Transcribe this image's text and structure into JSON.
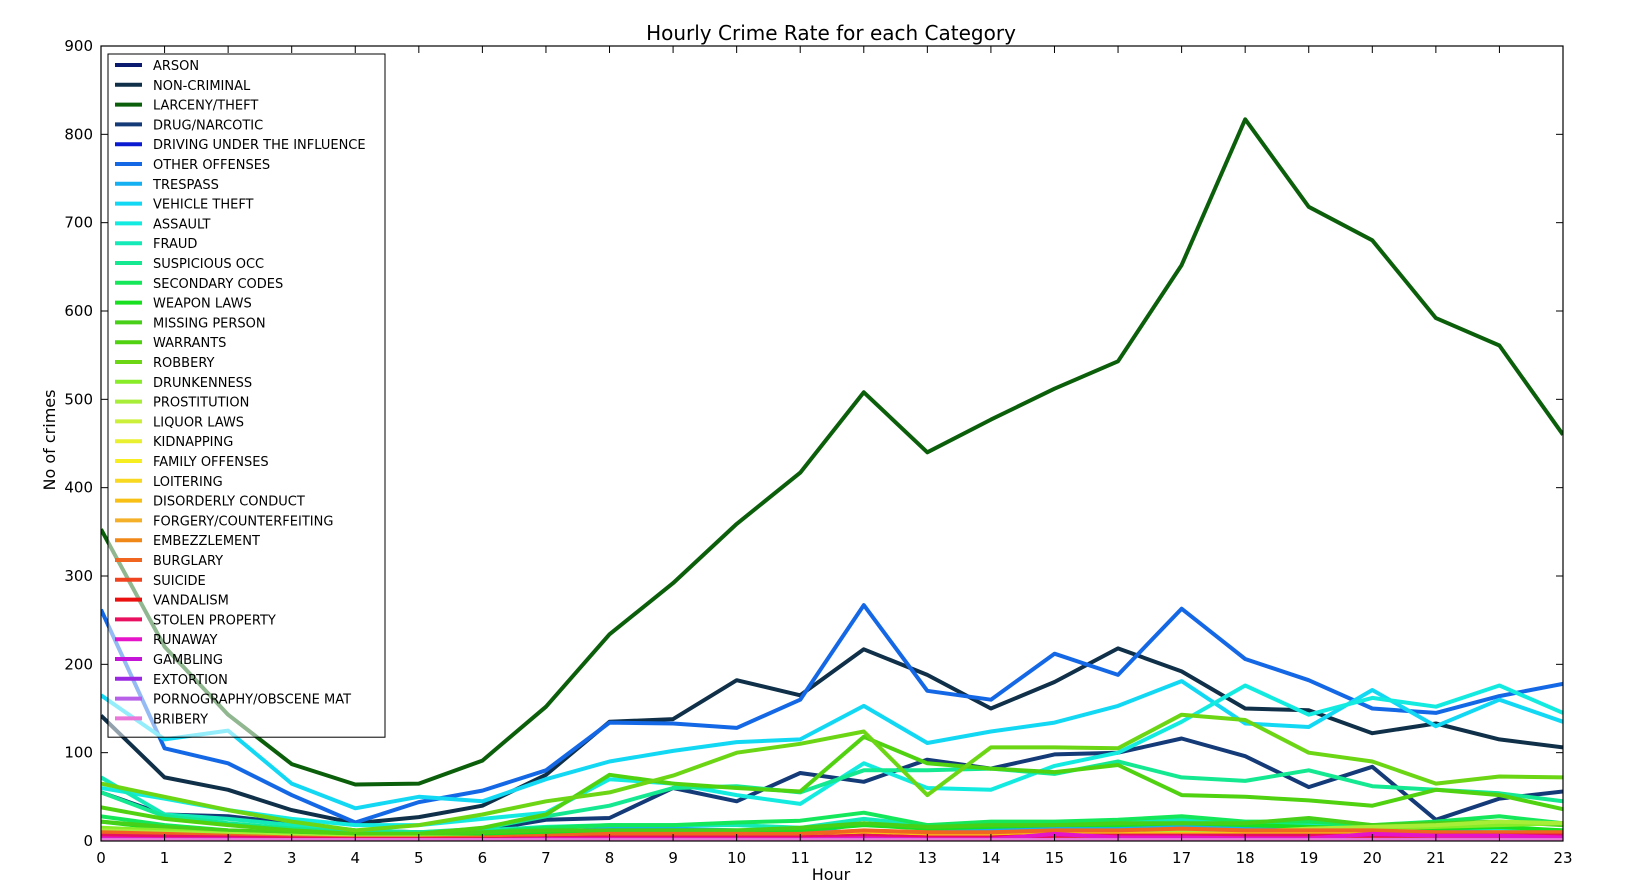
{
  "chart_data": {
    "type": "line",
    "title": "Hourly Crime Rate for each Category",
    "xlabel": "Hour",
    "ylabel": "No of crimes",
    "xlim": [
      0,
      23
    ],
    "ylim": [
      0,
      900
    ],
    "x": [
      0,
      1,
      2,
      3,
      4,
      5,
      6,
      7,
      8,
      9,
      10,
      11,
      12,
      13,
      14,
      15,
      16,
      17,
      18,
      19,
      20,
      21,
      22,
      23
    ],
    "xticks": [
      "0",
      "1",
      "2",
      "3",
      "4",
      "5",
      "6",
      "7",
      "8",
      "9",
      "10",
      "11",
      "12",
      "13",
      "14",
      "15",
      "16",
      "17",
      "18",
      "19",
      "20",
      "21",
      "22",
      "23"
    ],
    "yticks": [
      "0",
      "100",
      "200",
      "300",
      "400",
      "500",
      "600",
      "700",
      "800",
      "900"
    ],
    "grid": false,
    "legend_position": "top-left",
    "series": [
      {
        "name": "ARSON",
        "color": "#0a1a6e",
        "values": [
          1,
          1,
          1,
          1,
          1,
          1,
          1,
          1,
          1,
          1,
          1,
          1,
          1,
          1,
          1,
          1,
          1,
          1,
          1,
          1,
          1,
          1,
          1,
          1
        ]
      },
      {
        "name": "NON-CRIMINAL",
        "color": "#0f3048",
        "values": [
          142,
          72,
          58,
          35,
          20,
          27,
          40,
          75,
          135,
          138,
          182,
          165,
          217,
          188,
          150,
          180,
          218,
          192,
          150,
          148,
          122,
          133,
          115,
          106
        ]
      },
      {
        "name": "LARCENY/THEFT",
        "color": "#0b5f0b",
        "values": [
          353,
          220,
          143,
          87,
          64,
          65,
          91,
          152,
          234,
          292,
          359,
          417,
          508,
          440,
          477,
          512,
          543,
          652,
          817,
          718,
          680,
          592,
          561,
          460
        ]
      },
      {
        "name": "DRUG/NARCOTIC",
        "color": "#143a78",
        "values": [
          55,
          30,
          28,
          20,
          12,
          10,
          12,
          24,
          26,
          60,
          45,
          77,
          67,
          92,
          82,
          98,
          100,
          116,
          96,
          61,
          84,
          24,
          48,
          56
        ]
      },
      {
        "name": "DRIVING UNDER THE INFLUENCE",
        "color": "#0a1ad0",
        "values": [
          10,
          15,
          8,
          5,
          3,
          2,
          2,
          2,
          2,
          2,
          2,
          2,
          2,
          2,
          2,
          2,
          2,
          2,
          2,
          2,
          3,
          3,
          4,
          5
        ]
      },
      {
        "name": "OTHER OFFENSES",
        "color": "#1468e6",
        "values": [
          262,
          105,
          88,
          52,
          21,
          44,
          57,
          80,
          134,
          133,
          128,
          160,
          267,
          170,
          160,
          212,
          188,
          263,
          206,
          182,
          150,
          145,
          164,
          178
        ]
      },
      {
        "name": "TRESPASS",
        "color": "#14b0f2",
        "values": [
          8,
          6,
          5,
          4,
          3,
          3,
          5,
          10,
          14,
          14,
          12,
          8,
          20,
          14,
          12,
          14,
          14,
          18,
          16,
          14,
          12,
          12,
          10,
          9
        ]
      },
      {
        "name": "VEHICLE THEFT",
        "color": "#12d8f4",
        "values": [
          165,
          115,
          125,
          65,
          37,
          50,
          45,
          70,
          90,
          102,
          112,
          115,
          153,
          111,
          124,
          134,
          153,
          181,
          133,
          129,
          171,
          130,
          160,
          135
        ]
      },
      {
        "name": "ASSAULT",
        "color": "#14ebe0",
        "values": [
          60,
          48,
          35,
          25,
          18,
          18,
          25,
          32,
          70,
          65,
          52,
          42,
          88,
          60,
          58,
          85,
          100,
          135,
          176,
          143,
          162,
          152,
          176,
          145
        ]
      },
      {
        "name": "FRAUD",
        "color": "#14eab8",
        "values": [
          72,
          30,
          25,
          18,
          12,
          10,
          12,
          16,
          18,
          18,
          18,
          15,
          25,
          18,
          18,
          20,
          22,
          24,
          20,
          18,
          16,
          16,
          14,
          12
        ]
      },
      {
        "name": "SUSPICIOUS OCC",
        "color": "#14e890",
        "values": [
          55,
          28,
          20,
          14,
          10,
          10,
          14,
          28,
          40,
          60,
          62,
          55,
          80,
          80,
          82,
          76,
          90,
          72,
          68,
          80,
          62,
          58,
          54,
          45
        ]
      },
      {
        "name": "SECONDARY CODES",
        "color": "#14e85a",
        "values": [
          28,
          18,
          12,
          9,
          7,
          7,
          10,
          15,
          18,
          18,
          21,
          23,
          32,
          18,
          22,
          22,
          24,
          28,
          22,
          22,
          18,
          22,
          28,
          20
        ]
      },
      {
        "name": "WEAPON LAWS",
        "color": "#18e020",
        "values": [
          22,
          14,
          10,
          8,
          6,
          6,
          8,
          10,
          12,
          12,
          12,
          12,
          18,
          14,
          16,
          18,
          18,
          20,
          18,
          16,
          14,
          14,
          16,
          12
        ]
      },
      {
        "name": "MISSING PERSON",
        "color": "#48d018",
        "values": [
          22,
          16,
          12,
          10,
          8,
          8,
          10,
          12,
          12,
          12,
          12,
          15,
          20,
          16,
          18,
          18,
          20,
          20,
          20,
          26,
          18,
          20,
          22,
          18
        ]
      },
      {
        "name": "WARRANTS",
        "color": "#50d210",
        "values": [
          38,
          25,
          18,
          12,
          8,
          8,
          15,
          30,
          75,
          65,
          60,
          56,
          118,
          88,
          82,
          78,
          86,
          52,
          50,
          46,
          40,
          58,
          52,
          36
        ]
      },
      {
        "name": "ROBBERY",
        "color": "#6cd614",
        "values": [
          65,
          50,
          35,
          22,
          12,
          18,
          30,
          45,
          55,
          74,
          100,
          110,
          124,
          52,
          106,
          106,
          105,
          143,
          137,
          100,
          90,
          65,
          73,
          72
        ]
      },
      {
        "name": "DRUNKENNESS",
        "color": "#88ec28",
        "values": [
          15,
          12,
          8,
          6,
          4,
          4,
          4,
          4,
          4,
          4,
          4,
          4,
          6,
          6,
          6,
          8,
          8,
          10,
          10,
          12,
          14,
          16,
          18,
          20
        ]
      },
      {
        "name": "PROSTITUTION",
        "color": "#a8ee38",
        "values": [
          12,
          10,
          8,
          6,
          4,
          4,
          4,
          4,
          6,
          6,
          6,
          6,
          8,
          8,
          8,
          8,
          8,
          10,
          10,
          14,
          16,
          18,
          22,
          20
        ]
      },
      {
        "name": "LIQUOR LAWS",
        "color": "#ccf03a",
        "values": [
          6,
          5,
          4,
          3,
          2,
          2,
          2,
          2,
          3,
          3,
          3,
          3,
          4,
          4,
          4,
          5,
          5,
          6,
          6,
          7,
          8,
          9,
          10,
          8
        ]
      },
      {
        "name": "KIDNAPPING",
        "color": "#e8f030",
        "values": [
          4,
          3,
          3,
          2,
          2,
          2,
          2,
          2,
          3,
          3,
          3,
          3,
          4,
          3,
          3,
          4,
          4,
          4,
          4,
          4,
          4,
          4,
          4,
          4
        ]
      },
      {
        "name": "FAMILY OFFENSES",
        "color": "#f6ee20",
        "values": [
          2,
          2,
          2,
          1,
          1,
          1,
          1,
          1,
          2,
          2,
          2,
          2,
          3,
          2,
          2,
          2,
          2,
          2,
          2,
          2,
          2,
          2,
          2,
          2
        ]
      },
      {
        "name": "LOITERING",
        "color": "#f8d820",
        "values": [
          3,
          2,
          2,
          1,
          1,
          1,
          1,
          1,
          2,
          2,
          2,
          2,
          2,
          2,
          2,
          2,
          2,
          2,
          2,
          2,
          2,
          2,
          2,
          2
        ]
      },
      {
        "name": "DISORDERLY CONDUCT",
        "color": "#f8c014",
        "values": [
          8,
          6,
          4,
          3,
          2,
          2,
          3,
          4,
          6,
          6,
          6,
          6,
          8,
          6,
          6,
          8,
          8,
          8,
          8,
          8,
          8,
          8,
          8,
          8
        ]
      },
      {
        "name": "FORGERY/COUNTERFEITING",
        "color": "#f4b028",
        "values": [
          4,
          3,
          3,
          2,
          2,
          2,
          2,
          2,
          4,
          4,
          4,
          4,
          6,
          4,
          4,
          6,
          6,
          6,
          6,
          6,
          6,
          6,
          6,
          6
        ]
      },
      {
        "name": "EMBEZZLEMENT",
        "color": "#f08818",
        "values": [
          1,
          1,
          1,
          1,
          1,
          1,
          1,
          1,
          1,
          1,
          1,
          1,
          2,
          1,
          1,
          1,
          1,
          1,
          1,
          1,
          1,
          1,
          1,
          1
        ]
      },
      {
        "name": "BURGLARY",
        "color": "#f06620",
        "values": [
          10,
          8,
          6,
          4,
          3,
          3,
          4,
          6,
          8,
          8,
          8,
          8,
          12,
          10,
          10,
          12,
          12,
          14,
          12,
          12,
          12,
          10,
          10,
          10
        ]
      },
      {
        "name": "SUICIDE",
        "color": "#f04420",
        "values": [
          1,
          1,
          1,
          0,
          0,
          0,
          0,
          0,
          1,
          1,
          1,
          1,
          1,
          1,
          1,
          1,
          1,
          1,
          1,
          1,
          1,
          1,
          1,
          1
        ]
      },
      {
        "name": "VANDALISM",
        "color": "#ea1010",
        "values": [
          4,
          3,
          3,
          2,
          2,
          2,
          2,
          3,
          4,
          4,
          4,
          4,
          6,
          4,
          4,
          6,
          6,
          6,
          6,
          6,
          6,
          6,
          6,
          6
        ]
      },
      {
        "name": "STOLEN PROPERTY",
        "color": "#ea1060",
        "values": [
          6,
          5,
          4,
          3,
          2,
          2,
          2,
          3,
          4,
          4,
          4,
          4,
          6,
          4,
          4,
          6,
          6,
          6,
          6,
          6,
          6,
          6,
          6,
          6
        ]
      },
      {
        "name": "RUNAWAY",
        "color": "#e614c8",
        "values": [
          3,
          2,
          2,
          1,
          1,
          1,
          1,
          2,
          2,
          2,
          2,
          2,
          3,
          2,
          2,
          8,
          4,
          4,
          3,
          3,
          8,
          6,
          6,
          4
        ]
      },
      {
        "name": "GAMBLING",
        "color": "#c414d8",
        "values": [
          1,
          1,
          1,
          1,
          1,
          1,
          1,
          1,
          1,
          1,
          1,
          1,
          1,
          1,
          1,
          1,
          1,
          1,
          1,
          1,
          1,
          1,
          1,
          1
        ]
      },
      {
        "name": "EXTORTION",
        "color": "#9a28e0",
        "values": [
          1,
          1,
          1,
          1,
          1,
          1,
          1,
          1,
          1,
          1,
          1,
          1,
          1,
          1,
          1,
          1,
          1,
          1,
          1,
          1,
          1,
          1,
          1,
          1
        ]
      },
      {
        "name": "PORNOGRAPHY/OBSCENE MAT",
        "color": "#b860e8",
        "values": [
          1,
          1,
          1,
          1,
          1,
          1,
          1,
          1,
          1,
          1,
          1,
          1,
          1,
          1,
          1,
          1,
          1,
          1,
          1,
          1,
          1,
          1,
          1,
          1
        ]
      },
      {
        "name": "BRIBERY",
        "color": "#ea78d8",
        "values": [
          1,
          1,
          1,
          1,
          1,
          1,
          1,
          1,
          1,
          1,
          1,
          1,
          1,
          1,
          1,
          1,
          1,
          1,
          1,
          1,
          1,
          1,
          1,
          1
        ]
      }
    ]
  }
}
